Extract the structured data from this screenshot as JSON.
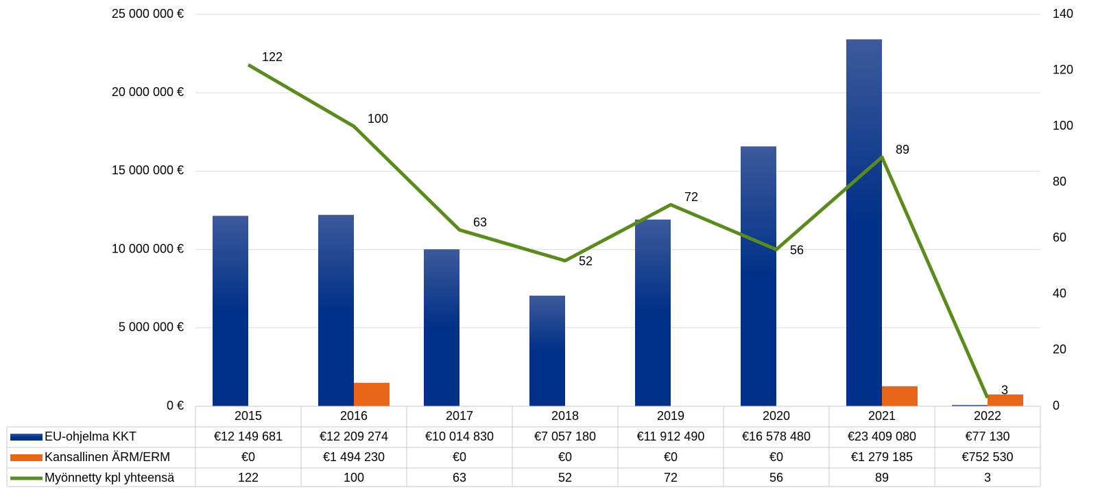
{
  "chart_data": {
    "type": "bar_line",
    "categories": [
      "2015",
      "2016",
      "2017",
      "2018",
      "2019",
      "2020",
      "2021",
      "2022"
    ],
    "series": [
      {
        "name": "EU-ohjelma KKT",
        "color": "#003087",
        "type": "bar",
        "values": [
          12149681,
          12209274,
          10014830,
          7057180,
          11912490,
          16578480,
          23409080,
          77130
        ],
        "value_labels": [
          "€12 149 681",
          "€12 209 274",
          "€10 014 830",
          "€7 057 180",
          "€11 912 490",
          "€16 578 480",
          "€23 409 080",
          "€77 130"
        ]
      },
      {
        "name": "Kansallinen ÄRM/ERM",
        "color": "#e8661a",
        "type": "bar",
        "values": [
          0,
          1494230,
          0,
          0,
          0,
          0,
          1279185,
          752530
        ],
        "value_labels": [
          "€0",
          "€1 494 230",
          "€0",
          "€0",
          "€0",
          "€0",
          "€1 279 185",
          "€752 530"
        ]
      },
      {
        "name": "Myönnetty kpl yhteensä",
        "color": "#5b8a1e",
        "type": "line",
        "axis": "y2",
        "values": [
          122,
          100,
          63,
          52,
          72,
          56,
          89,
          3
        ]
      }
    ],
    "ylim": [
      0,
      25000000
    ],
    "yticks": [
      {
        "value": 0,
        "label": "0 €"
      },
      {
        "value": 5000000,
        "label": "5 000 000 €"
      },
      {
        "value": 10000000,
        "label": "10 000 000 €"
      },
      {
        "value": 15000000,
        "label": "15 000 000 €"
      },
      {
        "value": 20000000,
        "label": "20 000 000 €"
      },
      {
        "value": 25000000,
        "label": "25 000 000 €"
      }
    ],
    "y2lim": [
      0,
      140
    ],
    "y2ticks": [
      0,
      20,
      40,
      60,
      80,
      100,
      120,
      140
    ],
    "grid": true
  }
}
